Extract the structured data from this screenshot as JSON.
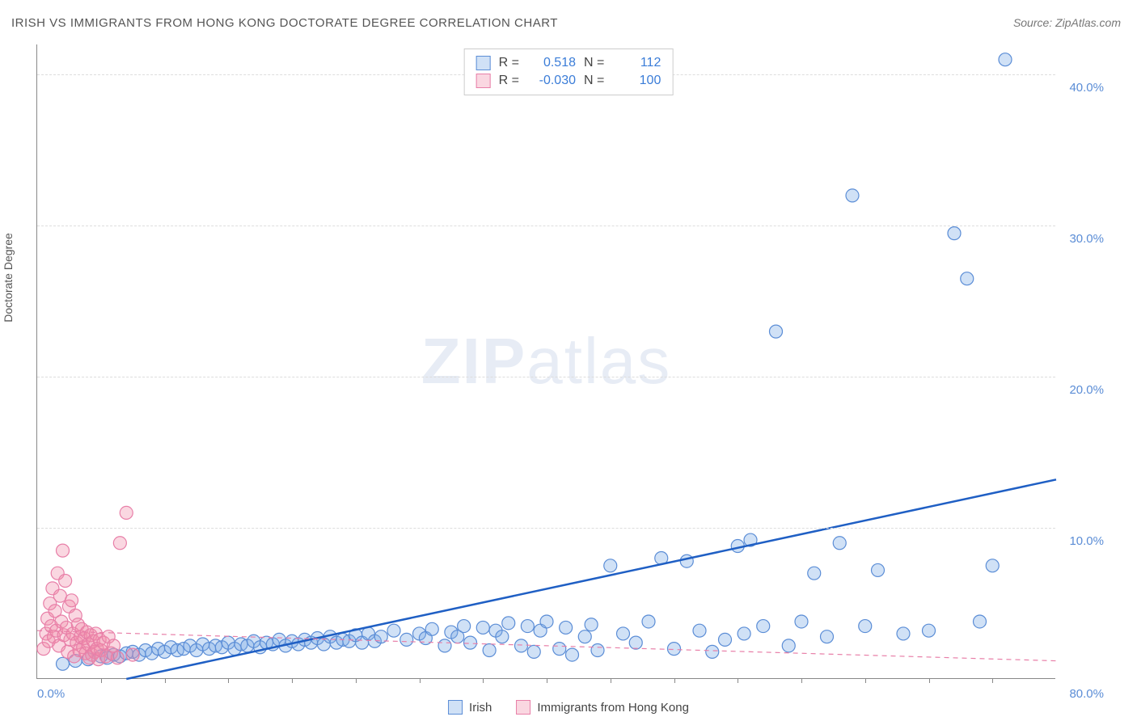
{
  "title": "IRISH VS IMMIGRANTS FROM HONG KONG DOCTORATE DEGREE CORRELATION CHART",
  "source": "Source: ZipAtlas.com",
  "y_axis_label": "Doctorate Degree",
  "watermark": {
    "zip": "ZIP",
    "atlas": "atlas"
  },
  "chart": {
    "type": "scatter",
    "xlim": [
      0,
      80
    ],
    "ylim": [
      0,
      42
    ],
    "x_tick_labels": {
      "0": "0.0%",
      "80": "80.0%"
    },
    "y_ticks": [
      10,
      20,
      30,
      40
    ],
    "y_tick_labels": {
      "10": "10.0%",
      "20": "20.0%",
      "30": "30.0%",
      "40": "40.0%"
    },
    "x_minor_ticks": [
      5,
      10,
      15,
      20,
      25,
      30,
      35,
      40,
      45,
      50,
      55,
      60,
      65,
      70,
      75
    ],
    "background_color": "#ffffff",
    "grid_color": "#dddddd",
    "marker_radius": 8,
    "marker_stroke_width": 1.2,
    "series": [
      {
        "name": "Irish",
        "color_fill": "rgba(120,170,230,0.35)",
        "color_stroke": "#5b8dd6",
        "R_label": "R =",
        "R": "0.518",
        "N_label": "N =",
        "N": "112",
        "trend": {
          "x1": 7,
          "y1": 0,
          "x2": 80,
          "y2": 13.2,
          "color": "#1f5fc4",
          "width": 2.5,
          "dash": "none"
        },
        "points": [
          [
            2,
            1.0
          ],
          [
            3,
            1.2
          ],
          [
            4,
            1.3
          ],
          [
            5,
            1.5
          ],
          [
            5.5,
            1.4
          ],
          [
            6,
            1.6
          ],
          [
            6.5,
            1.5
          ],
          [
            7,
            1.7
          ],
          [
            7.5,
            1.8
          ],
          [
            8,
            1.6
          ],
          [
            8.5,
            1.9
          ],
          [
            9,
            1.7
          ],
          [
            9.5,
            2.0
          ],
          [
            10,
            1.8
          ],
          [
            10.5,
            2.1
          ],
          [
            11,
            1.9
          ],
          [
            11.5,
            2.0
          ],
          [
            12,
            2.2
          ],
          [
            12.5,
            1.9
          ],
          [
            13,
            2.3
          ],
          [
            13.5,
            2.0
          ],
          [
            14,
            2.2
          ],
          [
            14.5,
            2.1
          ],
          [
            15,
            2.4
          ],
          [
            15.5,
            2.0
          ],
          [
            16,
            2.3
          ],
          [
            16.5,
            2.2
          ],
          [
            17,
            2.5
          ],
          [
            17.5,
            2.1
          ],
          [
            18,
            2.4
          ],
          [
            18.5,
            2.3
          ],
          [
            19,
            2.6
          ],
          [
            19.5,
            2.2
          ],
          [
            20,
            2.5
          ],
          [
            20.5,
            2.3
          ],
          [
            21,
            2.6
          ],
          [
            21.5,
            2.4
          ],
          [
            22,
            2.7
          ],
          [
            22.5,
            2.3
          ],
          [
            23,
            2.8
          ],
          [
            23.5,
            2.4
          ],
          [
            24,
            2.6
          ],
          [
            24.5,
            2.5
          ],
          [
            25,
            2.9
          ],
          [
            25.5,
            2.4
          ],
          [
            26,
            3.0
          ],
          [
            26.5,
            2.5
          ],
          [
            27,
            2.8
          ],
          [
            28,
            3.2
          ],
          [
            29,
            2.6
          ],
          [
            30,
            3.0
          ],
          [
            30.5,
            2.7
          ],
          [
            31,
            3.3
          ],
          [
            32,
            2.2
          ],
          [
            32.5,
            3.1
          ],
          [
            33,
            2.8
          ],
          [
            33.5,
            3.5
          ],
          [
            34,
            2.4
          ],
          [
            35,
            3.4
          ],
          [
            35.5,
            1.9
          ],
          [
            36,
            3.2
          ],
          [
            36.5,
            2.8
          ],
          [
            37,
            3.7
          ],
          [
            38,
            2.2
          ],
          [
            38.5,
            3.5
          ],
          [
            39,
            1.8
          ],
          [
            39.5,
            3.2
          ],
          [
            40,
            3.8
          ],
          [
            41,
            2.0
          ],
          [
            41.5,
            3.4
          ],
          [
            42,
            1.6
          ],
          [
            43,
            2.8
          ],
          [
            43.5,
            3.6
          ],
          [
            44,
            1.9
          ],
          [
            45,
            7.5
          ],
          [
            46,
            3.0
          ],
          [
            47,
            2.4
          ],
          [
            48,
            3.8
          ],
          [
            49,
            8.0
          ],
          [
            50,
            2.0
          ],
          [
            51,
            7.8
          ],
          [
            52,
            3.2
          ],
          [
            53,
            1.8
          ],
          [
            54,
            2.6
          ],
          [
            55,
            8.8
          ],
          [
            55.5,
            3.0
          ],
          [
            56,
            9.2
          ],
          [
            57,
            3.5
          ],
          [
            58,
            23.0
          ],
          [
            59,
            2.2
          ],
          [
            60,
            3.8
          ],
          [
            61,
            7.0
          ],
          [
            62,
            2.8
          ],
          [
            63,
            9.0
          ],
          [
            64,
            32.0
          ],
          [
            65,
            3.5
          ],
          [
            66,
            7.2
          ],
          [
            68,
            3.0
          ],
          [
            70,
            3.2
          ],
          [
            72,
            29.5
          ],
          [
            73,
            26.5
          ],
          [
            74,
            3.8
          ],
          [
            75,
            7.5
          ],
          [
            76,
            41.0
          ]
        ]
      },
      {
        "name": "Immigrants from Hong Kong",
        "color_fill": "rgba(240,140,170,0.35)",
        "color_stroke": "#e87fa8",
        "R_label": "R =",
        "R": "-0.030",
        "N_label": "N =",
        "N": "100",
        "trend": {
          "x1": 0,
          "y1": 3.2,
          "x2": 80,
          "y2": 1.2,
          "color": "#e87fa8",
          "width": 1.2,
          "dash": "6,5"
        },
        "points": [
          [
            0.5,
            2.0
          ],
          [
            0.7,
            3.0
          ],
          [
            0.8,
            4.0
          ],
          [
            0.9,
            2.5
          ],
          [
            1.0,
            5.0
          ],
          [
            1.1,
            3.5
          ],
          [
            1.2,
            6.0
          ],
          [
            1.3,
            2.8
          ],
          [
            1.4,
            4.5
          ],
          [
            1.5,
            3.2
          ],
          [
            1.6,
            7.0
          ],
          [
            1.7,
            2.2
          ],
          [
            1.8,
            5.5
          ],
          [
            1.9,
            3.8
          ],
          [
            2.0,
            8.5
          ],
          [
            2.1,
            2.9
          ],
          [
            2.2,
            6.5
          ],
          [
            2.3,
            3.4
          ],
          [
            2.4,
            1.8
          ],
          [
            2.5,
            4.8
          ],
          [
            2.6,
            2.6
          ],
          [
            2.7,
            5.2
          ],
          [
            2.8,
            3.0
          ],
          [
            2.9,
            1.5
          ],
          [
            3.0,
            4.2
          ],
          [
            3.1,
            2.4
          ],
          [
            3.2,
            3.6
          ],
          [
            3.3,
            1.9
          ],
          [
            3.4,
            2.8
          ],
          [
            3.5,
            3.3
          ],
          [
            3.6,
            2.1
          ],
          [
            3.7,
            2.7
          ],
          [
            3.8,
            1.7
          ],
          [
            3.9,
            3.1
          ],
          [
            4.0,
            2.3
          ],
          [
            4.1,
            1.4
          ],
          [
            4.2,
            2.9
          ],
          [
            4.3,
            1.6
          ],
          [
            4.4,
            2.5
          ],
          [
            4.5,
            1.8
          ],
          [
            4.6,
            3.0
          ],
          [
            4.7,
            2.0
          ],
          [
            4.8,
            1.3
          ],
          [
            4.9,
            2.6
          ],
          [
            5.0,
            1.9
          ],
          [
            5.2,
            2.4
          ],
          [
            5.4,
            1.5
          ],
          [
            5.6,
            2.8
          ],
          [
            5.8,
            1.7
          ],
          [
            6.0,
            2.2
          ],
          [
            6.3,
            1.4
          ],
          [
            6.5,
            9.0
          ],
          [
            7.0,
            11.0
          ],
          [
            7.5,
            1.6
          ]
        ]
      }
    ]
  },
  "legend": {
    "irish": "Irish",
    "hk": "Immigrants from Hong Kong"
  }
}
